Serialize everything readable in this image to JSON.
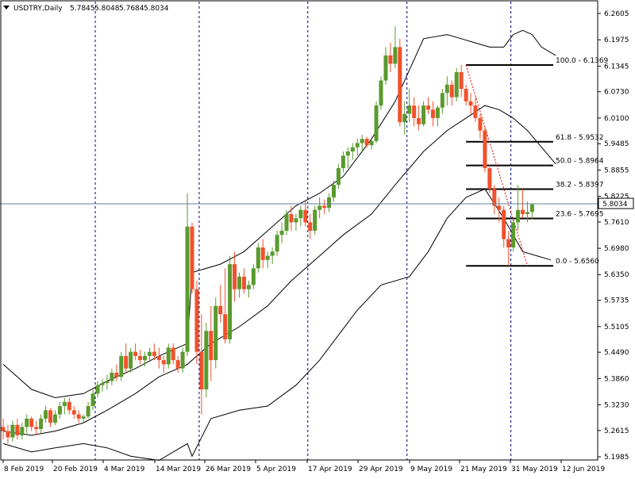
{
  "header": {
    "symbol": "USDTRY,Daily",
    "open": "5.7845",
    "high": "5.8048",
    "low": "5.7684",
    "close": "5.8034"
  },
  "colors": {
    "bull": "#5a9a2e",
    "bear": "#f0512c",
    "band": "#000000",
    "grid_v": "#000080",
    "price_line": "#5f7f9f",
    "price_box": "#ffffff"
  },
  "chart_data": {
    "type": "candlestick",
    "title": "USDTRY,Daily",
    "ylim": [
      5.1985,
      6.2605
    ],
    "y_ticks": [
      "6.2605",
      "6.1975",
      "6.1345",
      "6.0730",
      "6.0100",
      "5.9485",
      "5.8855",
      "5.8225",
      "5.7610",
      "5.6980",
      "5.6350",
      "5.5735",
      "5.5105",
      "5.4490",
      "5.3860",
      "5.3230",
      "5.2615",
      "5.1985"
    ],
    "x_labels": [
      "8 Feb 2019",
      "20 Feb 2019",
      "4 Mar 2019",
      "14 Mar 2019",
      "26 Mar 2019",
      "5 Apr 2019",
      "17 Apr 2019",
      "29 Apr 2019",
      "9 May 2019",
      "21 May 2019",
      "31 May 2019",
      "12 Jun 2019"
    ],
    "period_separator_indices": [
      19,
      41,
      64,
      85,
      107
    ],
    "current_price": "5.8034",
    "fibonacci": [
      {
        "label": "100.0 - 6.1369",
        "level": 6.1369
      },
      {
        "label": "61.8 - 5.9532",
        "level": 5.9532
      },
      {
        "label": "50.0 - 5.8964",
        "level": 5.8964
      },
      {
        "label": "38.2 - 5.8397",
        "level": 5.8397
      },
      {
        "label": "23.6 - 5.7695",
        "level": 5.7695
      },
      {
        "label": "0.0 - 5.6560",
        "level": 5.656
      }
    ],
    "fib_trend": {
      "from": [
        98,
        6.1369
      ],
      "to": [
        111,
        5.656
      ]
    },
    "candles": [
      [
        5.27,
        5.29,
        5.24,
        5.26
      ],
      [
        5.26,
        5.275,
        5.23,
        5.245
      ],
      [
        5.245,
        5.285,
        5.235,
        5.275
      ],
      [
        5.275,
        5.29,
        5.24,
        5.25
      ],
      [
        5.25,
        5.28,
        5.24,
        5.27
      ],
      [
        5.27,
        5.3,
        5.255,
        5.29
      ],
      [
        5.29,
        5.295,
        5.26,
        5.27
      ],
      [
        5.27,
        5.285,
        5.25,
        5.265
      ],
      [
        5.265,
        5.3,
        5.255,
        5.29
      ],
      [
        5.29,
        5.32,
        5.28,
        5.31
      ],
      [
        5.31,
        5.315,
        5.27,
        5.28
      ],
      [
        5.28,
        5.31,
        5.275,
        5.3
      ],
      [
        5.3,
        5.33,
        5.29,
        5.32
      ],
      [
        5.32,
        5.34,
        5.3,
        5.33
      ],
      [
        5.33,
        5.34,
        5.3,
        5.31
      ],
      [
        5.31,
        5.32,
        5.29,
        5.3
      ],
      [
        5.3,
        5.31,
        5.28,
        5.29
      ],
      [
        5.29,
        5.3,
        5.28,
        5.295
      ],
      [
        5.295,
        5.33,
        5.29,
        5.32
      ],
      [
        5.32,
        5.36,
        5.31,
        5.35
      ],
      [
        5.35,
        5.38,
        5.34,
        5.37
      ],
      [
        5.37,
        5.385,
        5.355,
        5.375
      ],
      [
        5.375,
        5.395,
        5.36,
        5.38
      ],
      [
        5.38,
        5.41,
        5.37,
        5.4
      ],
      [
        5.4,
        5.42,
        5.38,
        5.39
      ],
      [
        5.39,
        5.45,
        5.38,
        5.44
      ],
      [
        5.44,
        5.47,
        5.4,
        5.41
      ],
      [
        5.41,
        5.46,
        5.4,
        5.45
      ],
      [
        5.45,
        5.47,
        5.43,
        5.44
      ],
      [
        5.44,
        5.455,
        5.42,
        5.43
      ],
      [
        5.43,
        5.45,
        5.415,
        5.44
      ],
      [
        5.44,
        5.46,
        5.425,
        5.45
      ],
      [
        5.45,
        5.47,
        5.43,
        5.44
      ],
      [
        5.44,
        5.46,
        5.41,
        5.43
      ],
      [
        5.43,
        5.44,
        5.4,
        5.42
      ],
      [
        5.42,
        5.47,
        5.41,
        5.46
      ],
      [
        5.46,
        5.47,
        5.42,
        5.43
      ],
      [
        5.43,
        5.44,
        5.4,
        5.41
      ],
      [
        5.41,
        5.46,
        5.4,
        5.45
      ],
      [
        5.45,
        5.83,
        5.44,
        5.75
      ],
      [
        5.75,
        5.76,
        5.59,
        5.6
      ],
      [
        5.6,
        5.62,
        5.42,
        5.45
      ],
      [
        5.45,
        5.54,
        5.3,
        5.36
      ],
      [
        5.36,
        5.52,
        5.34,
        5.5
      ],
      [
        5.5,
        5.56,
        5.38,
        5.43
      ],
      [
        5.43,
        5.58,
        5.41,
        5.56
      ],
      [
        5.56,
        5.61,
        5.52,
        5.54
      ],
      [
        5.54,
        5.65,
        5.47,
        5.48
      ],
      [
        5.48,
        5.68,
        5.47,
        5.66
      ],
      [
        5.66,
        5.69,
        5.57,
        5.6
      ],
      [
        5.6,
        5.64,
        5.58,
        5.63
      ],
      [
        5.63,
        5.65,
        5.59,
        5.6
      ],
      [
        5.6,
        5.62,
        5.58,
        5.61
      ],
      [
        5.61,
        5.66,
        5.6,
        5.65
      ],
      [
        5.65,
        5.71,
        5.64,
        5.7
      ],
      [
        5.7,
        5.72,
        5.65,
        5.67
      ],
      [
        5.67,
        5.69,
        5.65,
        5.68
      ],
      [
        5.68,
        5.7,
        5.66,
        5.69
      ],
      [
        5.69,
        5.74,
        5.68,
        5.73
      ],
      [
        5.73,
        5.76,
        5.71,
        5.74
      ],
      [
        5.74,
        5.79,
        5.73,
        5.78
      ],
      [
        5.78,
        5.8,
        5.74,
        5.76
      ],
      [
        5.76,
        5.78,
        5.74,
        5.77
      ],
      [
        5.77,
        5.8,
        5.75,
        5.79
      ],
      [
        5.79,
        5.81,
        5.75,
        5.76
      ],
      [
        5.76,
        5.78,
        5.72,
        5.74
      ],
      [
        5.74,
        5.8,
        5.73,
        5.79
      ],
      [
        5.79,
        5.82,
        5.77,
        5.8
      ],
      [
        5.8,
        5.815,
        5.78,
        5.795
      ],
      [
        5.795,
        5.83,
        5.785,
        5.82
      ],
      [
        5.82,
        5.86,
        5.81,
        5.85
      ],
      [
        5.85,
        5.9,
        5.84,
        5.89
      ],
      [
        5.89,
        5.93,
        5.88,
        5.92
      ],
      [
        5.92,
        5.94,
        5.89,
        5.93
      ],
      [
        5.93,
        5.95,
        5.91,
        5.94
      ],
      [
        5.94,
        5.96,
        5.92,
        5.95
      ],
      [
        5.95,
        5.97,
        5.93,
        5.96
      ],
      [
        5.96,
        5.965,
        5.94,
        5.945
      ],
      [
        5.945,
        5.96,
        5.935,
        5.955
      ],
      [
        5.955,
        6.05,
        5.95,
        6.04
      ],
      [
        6.04,
        6.11,
        6.03,
        6.1
      ],
      [
        6.1,
        6.18,
        6.09,
        6.16
      ],
      [
        6.16,
        6.19,
        6.12,
        6.14
      ],
      [
        6.14,
        6.23,
        6.13,
        6.18
      ],
      [
        6.18,
        6.2,
        5.99,
        6.0
      ],
      [
        6.0,
        6.05,
        5.97,
        6.02
      ],
      [
        6.02,
        6.08,
        6.0,
        6.04
      ],
      [
        6.04,
        6.06,
        5.99,
        6.01
      ],
      [
        6.01,
        6.04,
        5.98,
        5.995
      ],
      [
        5.995,
        6.05,
        5.99,
        6.04
      ],
      [
        6.04,
        6.06,
        6.02,
        6.03
      ],
      [
        6.03,
        6.05,
        5.99,
        6.01
      ],
      [
        6.01,
        6.04,
        5.99,
        6.035
      ],
      [
        6.035,
        6.08,
        6.02,
        6.07
      ],
      [
        6.07,
        6.11,
        6.04,
        6.09
      ],
      [
        6.09,
        6.1,
        6.04,
        6.06
      ],
      [
        6.06,
        6.13,
        6.05,
        6.12
      ],
      [
        6.12,
        6.137,
        6.06,
        6.08
      ],
      [
        6.08,
        6.09,
        6.04,
        6.05
      ],
      [
        6.05,
        6.07,
        6.02,
        6.04
      ],
      [
        6.04,
        6.06,
        6.0,
        6.01
      ],
      [
        6.01,
        6.02,
        5.96,
        5.98
      ],
      [
        5.98,
        5.99,
        5.88,
        5.89
      ],
      [
        5.89,
        5.9,
        5.83,
        5.84
      ],
      [
        5.84,
        5.85,
        5.78,
        5.8
      ],
      [
        5.8,
        5.82,
        5.76,
        5.79
      ],
      [
        5.79,
        5.8,
        5.7,
        5.72
      ],
      [
        5.72,
        5.74,
        5.656,
        5.7
      ],
      [
        5.7,
        5.77,
        5.69,
        5.76
      ],
      [
        5.76,
        5.85,
        5.74,
        5.79
      ],
      [
        5.79,
        5.84,
        5.77,
        5.78
      ],
      [
        5.78,
        5.81,
        5.76,
        5.785
      ],
      [
        5.785,
        5.805,
        5.768,
        5.803
      ]
    ],
    "bollinger": {
      "upper": [
        [
          0,
          5.42
        ],
        [
          6,
          5.36
        ],
        [
          11,
          5.34
        ],
        [
          17,
          5.35
        ],
        [
          22,
          5.38
        ],
        [
          28,
          5.41
        ],
        [
          33,
          5.44
        ],
        [
          39,
          5.47
        ],
        [
          40,
          5.64
        ],
        [
          46,
          5.66
        ],
        [
          51,
          5.69
        ],
        [
          56,
          5.74
        ],
        [
          62,
          5.8
        ],
        [
          67,
          5.83
        ],
        [
          72,
          5.87
        ],
        [
          78,
          5.96
        ],
        [
          83,
          6.05
        ],
        [
          89,
          6.2
        ],
        [
          94,
          6.21
        ],
        [
          97,
          6.2
        ],
        [
          100,
          6.19
        ],
        [
          103,
          6.18
        ],
        [
          106,
          6.18
        ],
        [
          108,
          6.21
        ],
        [
          110,
          6.22
        ],
        [
          112,
          6.21
        ],
        [
          114,
          6.18
        ],
        [
          117,
          6.16
        ]
      ],
      "middle": [
        [
          0,
          5.26
        ],
        [
          6,
          5.25
        ],
        [
          11,
          5.26
        ],
        [
          17,
          5.28
        ],
        [
          22,
          5.31
        ],
        [
          28,
          5.35
        ],
        [
          33,
          5.39
        ],
        [
          39,
          5.42
        ],
        [
          44,
          5.47
        ],
        [
          50,
          5.51
        ],
        [
          56,
          5.56
        ],
        [
          61,
          5.62
        ],
        [
          67,
          5.68
        ],
        [
          72,
          5.73
        ],
        [
          78,
          5.78
        ],
        [
          83,
          5.85
        ],
        [
          89,
          5.93
        ],
        [
          94,
          5.98
        ],
        [
          98,
          6.01
        ],
        [
          102,
          6.04
        ],
        [
          105,
          6.03
        ],
        [
          108,
          6.01
        ],
        [
          111,
          5.98
        ],
        [
          114,
          5.94
        ],
        [
          117,
          5.9
        ]
      ],
      "lower": [
        [
          0,
          5.23
        ],
        [
          6,
          5.21
        ],
        [
          11,
          5.22
        ],
        [
          17,
          5.23
        ],
        [
          22,
          5.22
        ],
        [
          27,
          5.2
        ],
        [
          33,
          5.19
        ],
        [
          39,
          5.23
        ],
        [
          40,
          5.2
        ],
        [
          44,
          5.29
        ],
        [
          50,
          5.31
        ],
        [
          56,
          5.32
        ],
        [
          62,
          5.37
        ],
        [
          67,
          5.43
        ],
        [
          71,
          5.49
        ],
        [
          75,
          5.55
        ],
        [
          80,
          5.61
        ],
        [
          86,
          5.63
        ],
        [
          90,
          5.69
        ],
        [
          94,
          5.77
        ],
        [
          98,
          5.82
        ],
        [
          102,
          5.84
        ],
        [
          106,
          5.77
        ],
        [
          110,
          5.69
        ],
        [
          113,
          5.68
        ],
        [
          116,
          5.67
        ]
      ]
    }
  }
}
